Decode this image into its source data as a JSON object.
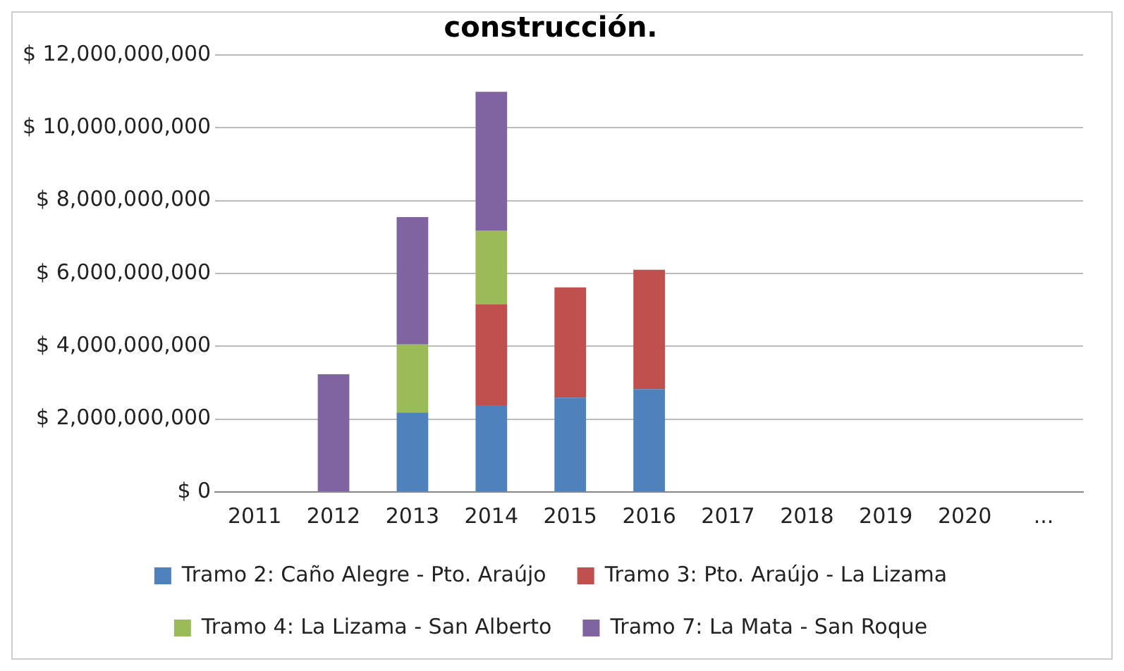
{
  "chart_data": {
    "type": "bar",
    "title": "construcción.",
    "stacked": true,
    "categories": [
      "2011",
      "2012",
      "2013",
      "2014",
      "2015",
      "2016",
      "2017",
      "2018",
      "2019",
      "2020",
      "..."
    ],
    "series": [
      {
        "name": "Tramo 2: Caño Alegre - Pto. Araújo",
        "color": "#4f81bd",
        "values": [
          null,
          null,
          2180000000,
          2380000000,
          2590000000,
          2820000000,
          null,
          null,
          null,
          null,
          null
        ]
      },
      {
        "name": "Tramo 3: Pto. Araújo - La Lizama",
        "color": "#c0504d",
        "values": [
          null,
          null,
          null,
          2780000000,
          3030000000,
          3280000000,
          null,
          null,
          null,
          null,
          null
        ]
      },
      {
        "name": "Tramo 4: La Lizama - San Alberto",
        "color": "#9bbb59",
        "values": [
          null,
          null,
          1870000000,
          2020000000,
          null,
          null,
          null,
          null,
          null,
          null,
          null
        ]
      },
      {
        "name": "Tramo 7: La Mata - San Roque",
        "color": "#8064a2",
        "values": [
          null,
          3230000000,
          3500000000,
          3810000000,
          null,
          null,
          null,
          null,
          null,
          null,
          null
        ]
      }
    ],
    "ylim": [
      0,
      12000000000
    ],
    "yticks": [
      {
        "value": 0,
        "label": "$ 0"
      },
      {
        "value": 2000000000,
        "label": "$ 2,000,000,000"
      },
      {
        "value": 4000000000,
        "label": "$ 4,000,000,000"
      },
      {
        "value": 6000000000,
        "label": "$ 6,000,000,000"
      },
      {
        "value": 8000000000,
        "label": "$ 8,000,000,000"
      },
      {
        "value": 10000000000,
        "label": "$ 10,000,000,000"
      },
      {
        "value": 12000000000,
        "label": "$ 12,000,000,000"
      }
    ],
    "grid": "y",
    "legend": "bottom"
  }
}
